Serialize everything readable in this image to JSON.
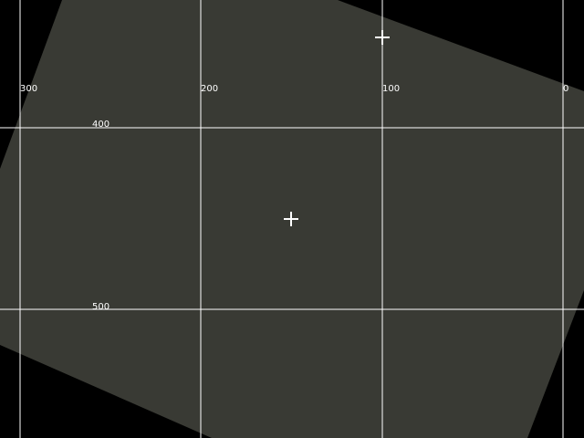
{
  "grid": {
    "x_labels": [
      "300",
      "200",
      "100",
      "0"
    ],
    "y_labels": [
      "400",
      "500"
    ]
  },
  "colors": {
    "background": "#000000",
    "image_plane": "#393a34",
    "grid_line": "#ffffff",
    "marker": "#ffffff"
  },
  "markers": [
    {
      "name": "target-crosshair-center",
      "icon": "crosshair-icon"
    },
    {
      "name": "target-crosshair-top",
      "icon": "crosshair-icon"
    }
  ]
}
